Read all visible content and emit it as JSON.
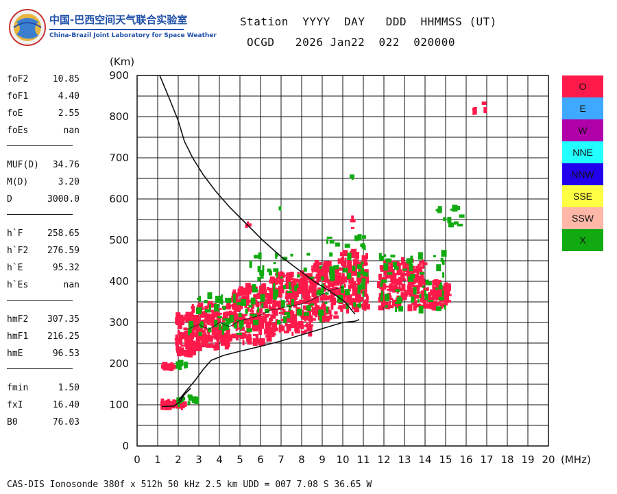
{
  "logo": {
    "name_cn": "中国-巴西空间天气联合实验室",
    "name_en": "China-Brazil Joint Laboratory for Space Weather"
  },
  "header": {
    "line1": "Station  YYYY  DAY   DDD  HHMMSS (UT)",
    "line2": "OCGD   2026 Jan22  022  020000"
  },
  "params": {
    "group1": [
      {
        "label": "foF2",
        "value": "10.85"
      },
      {
        "label": "foF1",
        "value": "4.40"
      },
      {
        "label": "foE",
        "value": "2.55"
      },
      {
        "label": "foEs",
        "value": "nan"
      }
    ],
    "group2": [
      {
        "label": "MUF(D)",
        "value": "34.76"
      },
      {
        "label": "M(D)",
        "value": "3.20"
      },
      {
        "label": "D",
        "value": "3000.0"
      }
    ],
    "group3": [
      {
        "label": "h`F",
        "value": "258.65"
      },
      {
        "label": "h`F2",
        "value": "276.59"
      },
      {
        "label": "h`E",
        "value": "95.32"
      },
      {
        "label": "h`Es",
        "value": "nan"
      }
    ],
    "group4": [
      {
        "label": "hmF2",
        "value": "307.35"
      },
      {
        "label": "hmF1",
        "value": "216.25"
      },
      {
        "label": "hmE",
        "value": "96.53"
      }
    ],
    "group5": [
      {
        "label": "fmin",
        "value": "1.50"
      },
      {
        "label": "fxI",
        "value": "16.40"
      },
      {
        "label": "B0",
        "value": "76.03"
      }
    ]
  },
  "legend": [
    {
      "label": "O",
      "color": "#ff1a4b"
    },
    {
      "label": "E",
      "color": "#3ea9ff"
    },
    {
      "label": "W",
      "color": "#b000a8"
    },
    {
      "label": "NNE",
      "color": "#22ffff"
    },
    {
      "label": "NNW",
      "color": "#2200ee"
    },
    {
      "label": "SSE",
      "color": "#ffff44"
    },
    {
      "label": "SSW",
      "color": "#ffb8a8"
    },
    {
      "label": "X",
      "color": "#11aa11"
    }
  ],
  "footer": "CAS-DIS Ionosonde 380f x 512h 50 kHz 2.5 km UDD = 007 7.08 S 36.65 W",
  "chart_data": {
    "type": "scatter",
    "xlabel": "(MHz)",
    "ylabel": "(Km)",
    "xlim": [
      0,
      20
    ],
    "ylim": [
      0,
      900
    ],
    "xticks": [
      "0",
      "1",
      "2",
      "3",
      "4",
      "5",
      "6",
      "7",
      "8",
      "9",
      "10",
      "11",
      "12",
      "13",
      "14",
      "15",
      "16",
      "17",
      "18",
      "19",
      "20"
    ],
    "yticks": [
      "0",
      "100",
      "200",
      "300",
      "400",
      "500",
      "600",
      "700",
      "800",
      "900"
    ],
    "grid": true,
    "legend_position": "right",
    "series": [
      {
        "name": "O",
        "color": "#ff1a4b",
        "clusters": [
          {
            "x": [
              1.2,
              1.9
            ],
            "y": [
              188,
              198
            ],
            "n": 14
          },
          {
            "x": [
              1.1,
              2.5
            ],
            "y": [
              92,
              108
            ],
            "n": 36
          },
          {
            "x": [
              1.9,
              2.8
            ],
            "y": [
              222,
              320
            ],
            "n": 90
          },
          {
            "x": [
              2.6,
              4.5
            ],
            "y": [
              235,
              345
            ],
            "n": 180
          },
          {
            "x": [
              4.5,
              6.5
            ],
            "y": [
              250,
              390
            ],
            "n": 200
          },
          {
            "x": [
              6.5,
              8.5
            ],
            "y": [
              270,
              420
            ],
            "n": 200
          },
          {
            "x": [
              8.5,
              9.8
            ],
            "y": [
              305,
              445
            ],
            "n": 140
          },
          {
            "x": [
              9.8,
              11.2
            ],
            "y": [
              330,
              470
            ],
            "n": 140
          },
          {
            "x": [
              11.8,
              14.0
            ],
            "y": [
              335,
              450
            ],
            "n": 190
          },
          {
            "x": [
              14.0,
              15.2
            ],
            "y": [
              338,
              400
            ],
            "n": 70
          },
          {
            "x": [
              16.35,
              16.45
            ],
            "y": [
              795,
              822
            ],
            "n": 3
          },
          {
            "x": [
              16.85,
              16.95
            ],
            "y": [
              810,
              840
            ],
            "n": 3
          },
          {
            "x": [
              5.2,
              5.6
            ],
            "y": [
              525,
              540
            ],
            "n": 3
          },
          {
            "x": [
              10.4,
              10.5
            ],
            "y": [
              525,
              570
            ],
            "n": 3
          }
        ]
      },
      {
        "name": "X",
        "color": "#11aa11",
        "clusters": [
          {
            "x": [
              2.0,
              3.0
            ],
            "y": [
              100,
              122
            ],
            "n": 12
          },
          {
            "x": [
              2.0,
              2.4
            ],
            "y": [
              192,
              205
            ],
            "n": 5
          },
          {
            "x": [
              2.5,
              5.5
            ],
            "y": [
              270,
              365
            ],
            "n": 50
          },
          {
            "x": [
              5.5,
              9.0
            ],
            "y": [
              300,
              470
            ],
            "n": 60
          },
          {
            "x": [
              9.0,
              11.2
            ],
            "y": [
              330,
              510
            ],
            "n": 50
          },
          {
            "x": [
              11.8,
              15.0
            ],
            "y": [
              330,
              470
            ],
            "n": 55
          },
          {
            "x": [
              14.5,
              15.8
            ],
            "y": [
              535,
              580
            ],
            "n": 14
          },
          {
            "x": [
              10.4,
              10.5
            ],
            "y": [
              605,
              670
            ],
            "n": 2
          },
          {
            "x": [
              6.95,
              7.05
            ],
            "y": [
              568,
              578
            ],
            "n": 1
          }
        ]
      }
    ],
    "profile_curve": {
      "x": [
        1.1,
        1.6,
        2.0,
        2.3,
        2.7,
        3.2,
        3.8,
        4.5,
        5.3,
        6.1,
        7.0,
        7.8,
        8.6,
        9.4,
        10.1,
        10.6
      ],
      "y": [
        900,
        840,
        790,
        740,
        700,
        660,
        620,
        580,
        540,
        500,
        460,
        430,
        400,
        375,
        350,
        320
      ]
    },
    "trace_curve": {
      "x": [
        1.2,
        1.8,
        2.1,
        2.3,
        2.6,
        2.2,
        2.0,
        2.4,
        2.8,
        3.2,
        3.6,
        4.2,
        5.0,
        6.0,
        7.0,
        8.0,
        9.0,
        10.0,
        10.6,
        10.8
      ],
      "y": [
        96,
        97,
        108,
        125,
        140,
        120,
        110,
        135,
        158,
        185,
        208,
        220,
        230,
        242,
        255,
        270,
        285,
        300,
        303,
        307
      ]
    },
    "trace_inner": {
      "x": [
        2.5,
        3.0,
        3.5,
        4.0,
        4.5,
        5.0,
        5.5,
        6.0,
        6.5,
        7.0,
        7.5,
        8.0,
        8.5,
        9.0,
        9.5,
        10.0
      ],
      "y": [
        285,
        295,
        283,
        300,
        290,
        305,
        310,
        318,
        330,
        335,
        340,
        345,
        355,
        368,
        380,
        385
      ]
    }
  }
}
